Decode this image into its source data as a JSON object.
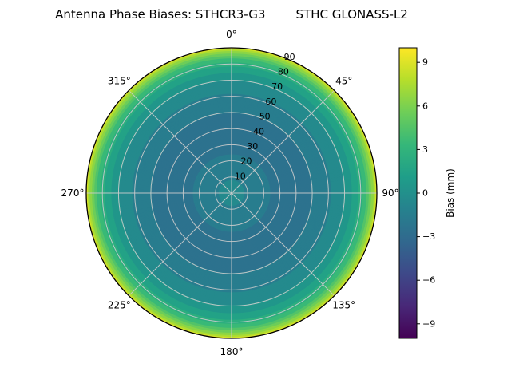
{
  "chart_data": {
    "type": "heatmap",
    "projection": "polar",
    "title": "Antenna Phase Biases: STHCR3-G3        STHC GLONASS-L2",
    "angular_tick_deg": [
      0,
      45,
      90,
      135,
      180,
      225,
      270,
      315
    ],
    "angular_tick_labels": [
      "0°",
      "45°",
      "90°",
      "135°",
      "180°",
      "225°",
      "270°",
      "315°"
    ],
    "radial_ticks": [
      10,
      20,
      30,
      40,
      50,
      60,
      70,
      80,
      90
    ],
    "radial_tick_labels": [
      "10",
      "20",
      "30",
      "40",
      "50",
      "60",
      "70",
      "80",
      "90"
    ],
    "radial_max": 90,
    "rlabel_angle_deg": 22.5,
    "colorbar": {
      "label": "Bias (mm)",
      "ticks": [
        9,
        6,
        3,
        0,
        -3,
        -6,
        -9
      ],
      "vmin": -10,
      "vmax": 10
    },
    "colormap_name": "viridis",
    "colormap_stops": [
      "#440154",
      "#482878",
      "#3e4989",
      "#31688e",
      "#26828e",
      "#1f9e89",
      "#35b779",
      "#6ece58",
      "#b5de2b",
      "#fde725"
    ],
    "contour_step_mm": 1,
    "radial_profile": {
      "zenith_deg": [
        0,
        10,
        20,
        30,
        40,
        50,
        60,
        70,
        75,
        80,
        84,
        87,
        89,
        90
      ],
      "bias_mm": [
        -0.6,
        -1.1,
        -1.8,
        -2.3,
        -2.4,
        -2.0,
        -1.2,
        0.0,
        1.0,
        2.4,
        4.2,
        6.0,
        7.8,
        9.6
      ]
    },
    "grid_color": "#cccccc",
    "outline_color": "#000000",
    "background_color": "#ffffff"
  }
}
